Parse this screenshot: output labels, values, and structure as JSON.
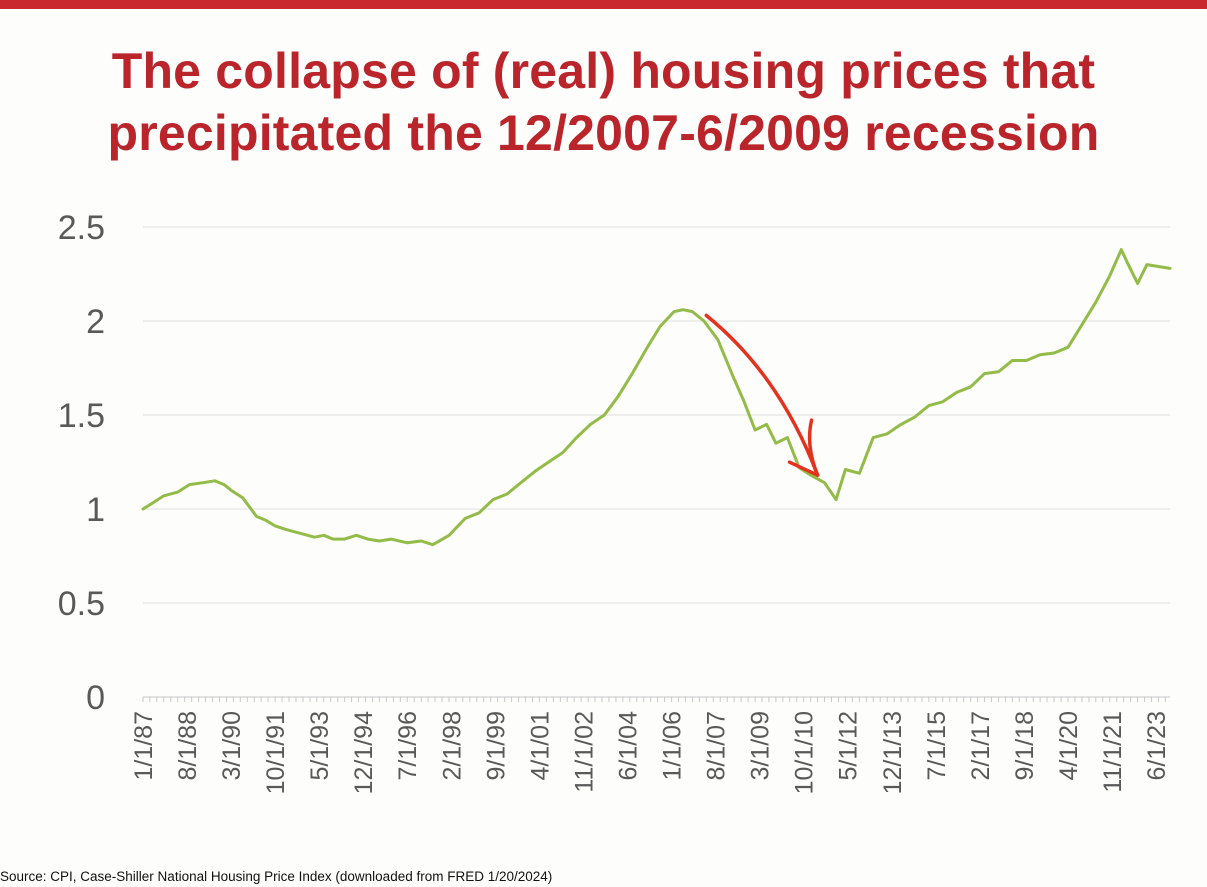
{
  "slide": {
    "title_line1": "The collapse of (real) housing prices that",
    "title_line2": "precipitated the 12/2007-6/2009 recession",
    "source": "Source: CPI, Case-Shiller National Housing Price Index (downloaded from FRED 1/20/2024)",
    "accent_color": "#c8282e",
    "title_color": "#b9252b"
  },
  "chart_data": {
    "type": "line",
    "title": "",
    "xlabel": "",
    "ylabel": "",
    "ylim": [
      0,
      2.5
    ],
    "yticks": [
      "0",
      "0.5",
      "1",
      "1.5",
      "2",
      "2.5"
    ],
    "y_tick_values": [
      0,
      0.5,
      1,
      1.5,
      2,
      2.5
    ],
    "grid": true,
    "legend": "none",
    "x_range": [
      "1987-01-01",
      "2023-12-01"
    ],
    "xtick_labels": [
      "1/1/87",
      "8/1/88",
      "3/1/90",
      "10/1/91",
      "5/1/93",
      "12/1/94",
      "7/1/96",
      "2/1/98",
      "9/1/99",
      "4/1/01",
      "11/1/02",
      "6/1/04",
      "1/1/06",
      "8/1/07",
      "3/1/09",
      "10/1/10",
      "5/1/12",
      "12/1/13",
      "7/1/15",
      "2/1/17",
      "9/1/18",
      "4/1/20",
      "11/1/21",
      "6/1/23"
    ],
    "series": [
      {
        "color": "#93bb48",
        "x": [
          "1987-01-01",
          "1987-05-01",
          "1987-10-01",
          "1988-04-01",
          "1988-09-01",
          "1989-03-01",
          "1989-08-01",
          "1989-12-01",
          "1990-03-01",
          "1990-08-01",
          "1991-02-01",
          "1991-06-01",
          "1991-10-01",
          "1992-03-01",
          "1992-09-01",
          "1993-03-01",
          "1993-07-01",
          "1993-11-01",
          "1994-04-01",
          "1994-09-01",
          "1995-02-01",
          "1995-07-01",
          "1995-12-01",
          "1996-07-01",
          "1997-01-01",
          "1997-06-01",
          "1998-01-01",
          "1998-08-01",
          "1999-02-01",
          "1999-08-01",
          "2000-02-01",
          "2000-08-01",
          "2001-02-01",
          "2001-08-01",
          "2002-02-01",
          "2002-08-01",
          "2003-02-01",
          "2003-08-01",
          "2004-02-01",
          "2004-08-01",
          "2005-02-01",
          "2005-08-01",
          "2006-02-01",
          "2006-06-01",
          "2006-10-01",
          "2007-03-01",
          "2007-09-01",
          "2008-03-01",
          "2008-08-01",
          "2009-01-01",
          "2009-06-01",
          "2009-10-01",
          "2010-03-01",
          "2010-08-01",
          "2011-01-01",
          "2011-07-01",
          "2011-12-01",
          "2012-04-01",
          "2012-10-01",
          "2013-04-01",
          "2013-10-01",
          "2014-04-01",
          "2014-10-01",
          "2015-04-01",
          "2015-10-01",
          "2016-04-01",
          "2016-10-01",
          "2017-04-01",
          "2017-10-01",
          "2018-04-01",
          "2018-10-01",
          "2019-04-01",
          "2019-10-01",
          "2020-04-01",
          "2020-10-01",
          "2021-04-01",
          "2021-10-01",
          "2022-03-01",
          "2022-06-01",
          "2022-10-01",
          "2023-02-01",
          "2023-07-01",
          "2023-12-01"
        ],
        "values": [
          1.0,
          1.03,
          1.07,
          1.09,
          1.13,
          1.14,
          1.15,
          1.13,
          1.1,
          1.06,
          0.96,
          0.94,
          0.91,
          0.89,
          0.87,
          0.85,
          0.86,
          0.84,
          0.84,
          0.86,
          0.84,
          0.83,
          0.84,
          0.82,
          0.83,
          0.81,
          0.86,
          0.95,
          0.98,
          1.05,
          1.08,
          1.14,
          1.2,
          1.25,
          1.3,
          1.38,
          1.45,
          1.5,
          1.6,
          1.72,
          1.85,
          1.97,
          2.05,
          2.06,
          2.05,
          2.0,
          1.9,
          1.72,
          1.58,
          1.42,
          1.45,
          1.35,
          1.38,
          1.22,
          1.18,
          1.14,
          1.05,
          1.21,
          1.19,
          1.38,
          1.4,
          1.45,
          1.49,
          1.55,
          1.57,
          1.62,
          1.65,
          1.72,
          1.73,
          1.79,
          1.79,
          1.82,
          1.83,
          1.86,
          1.98,
          2.1,
          2.24,
          2.38,
          2.3,
          2.2,
          2.3,
          2.29,
          2.28
        ]
      }
    ],
    "annotations": [
      {
        "type": "arrow",
        "color": "#e3321e",
        "from": [
          "2007-04-01",
          2.03
        ],
        "to": [
          "2011-04-01",
          1.18
        ]
      }
    ]
  }
}
